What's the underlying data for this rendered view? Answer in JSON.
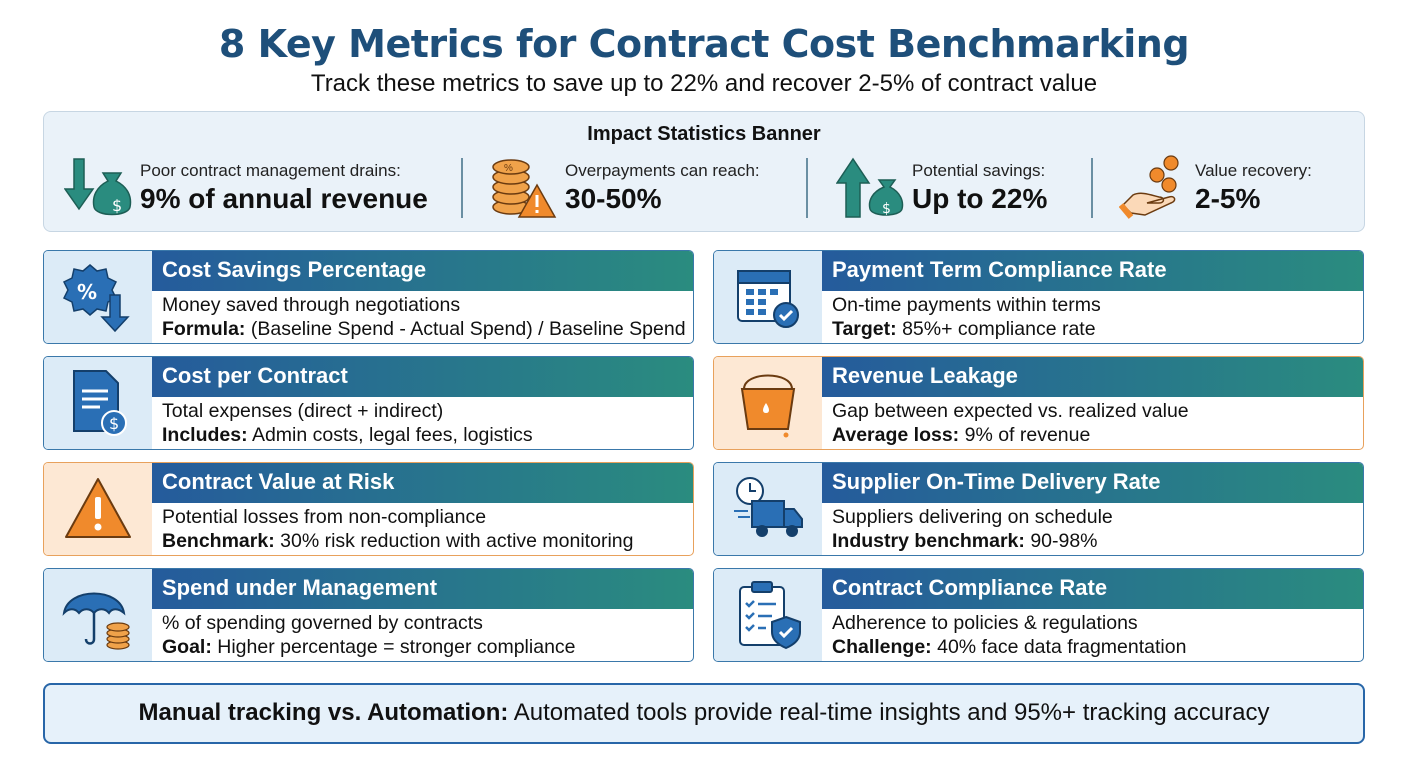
{
  "title": "8 Key Metrics for Contract Cost Benchmarking",
  "subtitle": "Track these metrics to save up to 22% and recover 2-5% of contract value",
  "banner": {
    "title": "Impact Statistics Banner",
    "stats": [
      {
        "label": "Poor contract management drains:",
        "value": "9% of annual revenue",
        "icon": "down-arrow-money-bag-icon"
      },
      {
        "label": "Overpayments can reach:",
        "value": "30-50%",
        "icon": "coins-warning-icon"
      },
      {
        "label": "Potential savings:",
        "value": "Up to 22%",
        "icon": "up-arrow-money-bag-icon"
      },
      {
        "label": "Value recovery:",
        "value": "2-5%",
        "icon": "hand-coins-icon"
      }
    ]
  },
  "metrics": [
    {
      "title": "Cost Savings Percentage",
      "desc": "Money saved through negotiations",
      "key": "Formula:",
      "detail": "(Baseline Spend - Actual Spend) / Baseline Spend",
      "icon": "percent-badge-down-arrow-icon"
    },
    {
      "title": "Payment Term Compliance Rate",
      "desc": "On-time payments within terms",
      "key": "Target:",
      "detail": "85%+ compliance rate",
      "icon": "calendar-check-icon"
    },
    {
      "title": "Cost per Contract",
      "desc": "Total expenses (direct + indirect)",
      "key": "Includes:",
      "detail": "Admin costs, legal fees, logistics",
      "icon": "document-dollar-icon"
    },
    {
      "title": "Revenue Leakage",
      "desc": "Gap between expected vs. realized value",
      "key": "Average loss:",
      "detail": "9% of revenue",
      "icon": "leaking-bucket-icon"
    },
    {
      "title": "Contract Value at Risk",
      "desc": "Potential losses from non-compliance",
      "key": "Benchmark:",
      "detail": "30% risk reduction with active monitoring",
      "icon": "warning-triangle-icon"
    },
    {
      "title": "Supplier On-Time Delivery Rate",
      "desc": "Suppliers delivering on schedule",
      "key": "Industry benchmark:",
      "detail": "90-98%",
      "icon": "delivery-truck-clock-icon"
    },
    {
      "title": "Spend under Management",
      "desc": "% of spending governed by contracts",
      "key": "Goal:",
      "detail": "Higher percentage = stronger compliance",
      "icon": "umbrella-coins-icon"
    },
    {
      "title": "Contract Compliance Rate",
      "desc": "Adherence to policies & regulations",
      "key": "Challenge:",
      "detail": "40% face data fragmentation",
      "icon": "clipboard-shield-icon"
    }
  ],
  "footer": {
    "key": "Manual tracking vs. Automation:",
    "text": "Automated tools provide real-time insights and 95%+ tracking accuracy"
  },
  "colors": {
    "title": "#1e4f7a",
    "header_start": "#255b9c",
    "header_end": "#2a8c7f",
    "teal": "#2a8c7f",
    "blue": "#2a6fb5",
    "orange": "#f08a2c"
  }
}
